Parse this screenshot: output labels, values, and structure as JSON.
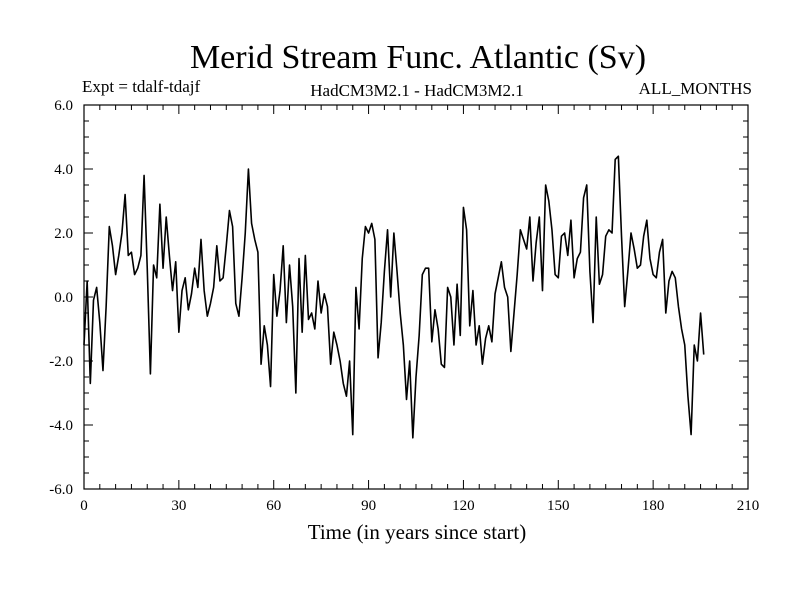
{
  "chart_data": {
    "type": "line",
    "title": "Merid Stream Func. Atlantic (Sv)",
    "subtitle_left": "Expt = tdalf-tdajf",
    "subtitle_center": "HadCM3M2.1 - HadCM3M2.1",
    "subtitle_right": "ALL_MONTHS",
    "xlabel": "Time (in years since start)",
    "ylabel": "",
    "xlim": [
      0,
      210
    ],
    "ylim": [
      -6.0,
      6.0
    ],
    "x_ticks": [
      0,
      30,
      60,
      90,
      120,
      150,
      180,
      210
    ],
    "x_tick_labels": [
      "0",
      "30",
      "60",
      "90",
      "120",
      "150",
      "180",
      "210"
    ],
    "y_ticks": [
      -6.0,
      -4.0,
      -2.0,
      0.0,
      2.0,
      4.0,
      6.0
    ],
    "y_tick_labels": [
      "-6.0",
      "-4.0",
      "-2.0",
      "0.0",
      "2.0",
      "4.0",
      "6.0"
    ],
    "series": [
      {
        "name": "tdalf-tdajf",
        "values": [
          -1.5,
          0.5,
          -2.7,
          -0.1,
          0.3,
          -0.8,
          -2.3,
          -0.3,
          2.2,
          1.6,
          0.7,
          1.3,
          2.0,
          3.2,
          1.3,
          1.4,
          0.7,
          0.9,
          1.3,
          3.8,
          0.9,
          -2.4,
          1.0,
          0.6,
          2.9,
          0.9,
          2.5,
          1.3,
          0.2,
          1.1,
          -1.1,
          0.2,
          0.6,
          -0.4,
          0.1,
          0.9,
          0.3,
          1.8,
          0.2,
          -0.6,
          -0.2,
          0.3,
          1.6,
          0.5,
          0.6,
          1.6,
          2.7,
          2.2,
          -0.2,
          -0.6,
          0.6,
          2.0,
          4.0,
          2.3,
          1.8,
          1.4,
          -2.1,
          -0.9,
          -1.5,
          -2.8,
          0.7,
          -0.6,
          0.2,
          1.6,
          -0.8,
          1.0,
          -0.3,
          -3.0,
          1.2,
          -1.1,
          1.3,
          -0.7,
          -0.5,
          -1.0,
          0.5,
          -0.5,
          0.1,
          -0.3,
          -2.1,
          -1.1,
          -1.5,
          -2.0,
          -2.7,
          -3.1,
          -2.0,
          -4.3,
          0.3,
          -1.0,
          1.2,
          2.2,
          2.0,
          2.3,
          1.8,
          -1.9,
          -0.8,
          0.8,
          2.1,
          0.0,
          2.0,
          0.8,
          -0.5,
          -1.5,
          -3.2,
          -2.0,
          -4.4,
          -2.5,
          -1.2,
          0.7,
          0.9,
          0.9,
          -1.4,
          -0.4,
          -1.0,
          -2.1,
          -2.2,
          0.3,
          0.0,
          -1.5,
          0.4,
          -1.2,
          2.8,
          2.1,
          -0.9,
          0.2,
          -1.5,
          -0.9,
          -2.1,
          -1.3,
          -0.9,
          -1.4,
          0.1,
          0.6,
          1.1,
          0.3,
          0.0,
          -1.7,
          -0.5,
          0.7,
          2.1,
          1.8,
          1.5,
          2.5,
          0.5,
          1.7,
          2.5,
          0.2,
          3.5,
          3.0,
          2.1,
          0.7,
          0.6,
          1.9,
          2.0,
          1.3,
          2.4,
          0.6,
          1.2,
          1.4,
          3.1,
          3.5,
          0.8,
          -0.8,
          2.5,
          0.4,
          0.7,
          1.9,
          2.1,
          2.0,
          4.3,
          4.4,
          1.9,
          -0.3,
          0.8,
          2.0,
          1.5,
          0.9,
          1.0,
          1.9,
          2.4,
          1.2,
          0.7,
          0.6,
          1.4,
          1.8,
          -0.5,
          0.5,
          0.8,
          0.6,
          -0.3,
          -1.0,
          -1.5,
          -3.1,
          -4.3,
          -1.5,
          -2.0,
          -0.5,
          -1.8
        ]
      }
    ]
  }
}
